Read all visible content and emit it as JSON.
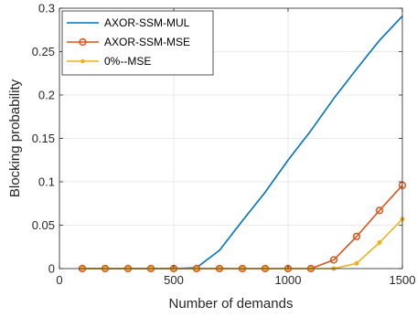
{
  "chart_data": {
    "type": "line",
    "xlabel": "Number of demands",
    "ylabel": "Blocking probability",
    "xlim": [
      0,
      1500
    ],
    "ylim": [
      0,
      0.3
    ],
    "xticks": [
      0,
      500,
      1000,
      1500
    ],
    "yticks": [
      0,
      0.05,
      0.1,
      0.15,
      0.2,
      0.25,
      0.3
    ],
    "xtick_labels": [
      "0",
      "500",
      "1000",
      "1500"
    ],
    "ytick_labels": [
      "0",
      "0.05",
      "0.1",
      "0.15",
      "0.2",
      "0.25",
      "0.3"
    ],
    "grid": true,
    "legend_position": "top-left",
    "series": [
      {
        "name": "AXOR-SSM-MUL",
        "color": "#0072BD",
        "marker": "none",
        "x": [
          100,
          200,
          300,
          400,
          500,
          600,
          700,
          800,
          900,
          1000,
          1100,
          1200,
          1300,
          1400,
          1500
        ],
        "y": [
          0,
          0,
          0,
          0,
          0,
          0.001,
          0.021,
          0.055,
          0.088,
          0.125,
          0.159,
          0.196,
          0.23,
          0.263,
          0.291
        ]
      },
      {
        "name": "AXOR-SSM-MSE",
        "color": "#D95319",
        "marker": "circle",
        "x": [
          100,
          200,
          300,
          400,
          500,
          600,
          700,
          800,
          900,
          1000,
          1100,
          1200,
          1300,
          1400,
          1500
        ],
        "y": [
          0,
          0,
          0,
          0,
          0,
          0,
          0,
          0,
          0,
          0,
          0,
          0.01,
          0.037,
          0.067,
          0.096
        ]
      },
      {
        "name": "0%--MSE",
        "color": "#EDB120",
        "marker": "dot",
        "x": [
          100,
          200,
          300,
          400,
          500,
          600,
          700,
          800,
          900,
          1000,
          1100,
          1200,
          1300,
          1400,
          1500
        ],
        "y": [
          0,
          0,
          0,
          0,
          0,
          0,
          0,
          0,
          0,
          0,
          0,
          0,
          0.006,
          0.03,
          0.057
        ]
      }
    ]
  }
}
